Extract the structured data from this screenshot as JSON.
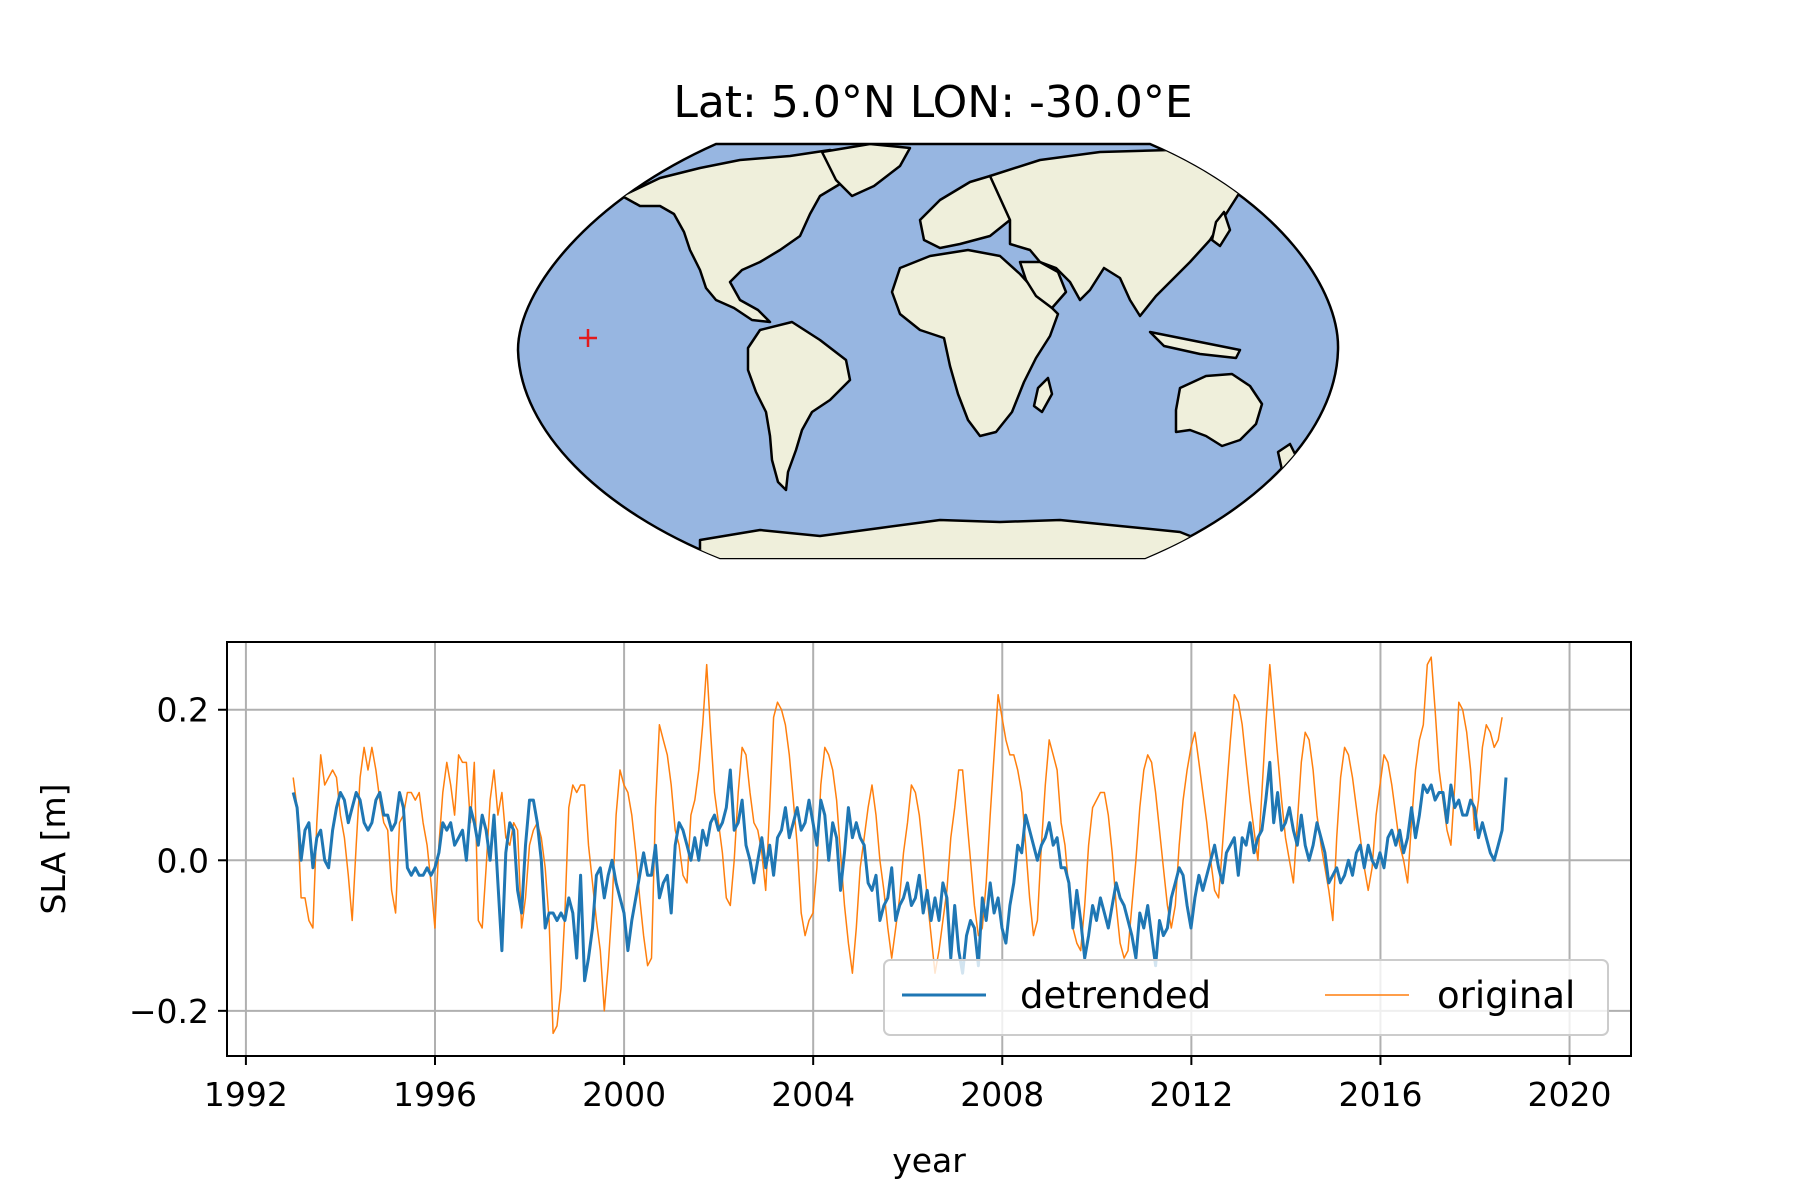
{
  "map": {
    "title": "Lat: 5.0°N LON: -30.0°E",
    "ocean_color": "#97b6e1",
    "land_color": "#efefdb",
    "marker_color": "#e31a1c",
    "marker_symbol": "+"
  },
  "chart_data": {
    "type": "line",
    "xlabel": "year",
    "ylabel": "SLA [m]",
    "xlim": [
      1991.6,
      2021.3
    ],
    "ylim": [
      -0.26,
      0.29
    ],
    "xticks": [
      1992,
      1996,
      2000,
      2004,
      2008,
      2012,
      2016,
      2020
    ],
    "xtick_labels": [
      "1992",
      "1996",
      "2000",
      "2004",
      "2008",
      "2012",
      "2016",
      "2020"
    ],
    "yticks": [
      -0.2,
      0.0,
      0.2
    ],
    "ytick_labels": [
      "−0.2",
      "0.0",
      "0.2"
    ],
    "grid": true,
    "legend_position": "lower-right",
    "x_start": 1993.0,
    "x_step": 0.0833,
    "series": [
      {
        "name": "detrended",
        "color": "#1f77b4",
        "values": [
          0.09,
          0.07,
          0.0,
          0.04,
          0.05,
          -0.01,
          0.03,
          0.04,
          0.0,
          -0.01,
          0.04,
          0.07,
          0.09,
          0.08,
          0.05,
          0.07,
          0.09,
          0.08,
          0.05,
          0.04,
          0.05,
          0.08,
          0.09,
          0.06,
          0.06,
          0.04,
          0.05,
          0.09,
          0.07,
          -0.01,
          -0.02,
          -0.01,
          -0.02,
          -0.02,
          -0.01,
          -0.02,
          -0.01,
          0.01,
          0.05,
          0.04,
          0.05,
          0.02,
          0.03,
          0.04,
          0.0,
          0.07,
          0.05,
          0.02,
          0.06,
          0.04,
          0.0,
          0.06,
          -0.03,
          -0.12,
          0.01,
          0.05,
          0.04,
          -0.04,
          -0.07,
          0.02,
          0.08,
          0.08,
          0.05,
          0.0,
          -0.09,
          -0.07,
          -0.07,
          -0.08,
          -0.07,
          -0.08,
          -0.05,
          -0.07,
          -0.13,
          -0.02,
          -0.16,
          -0.13,
          -0.09,
          -0.02,
          -0.01,
          -0.05,
          -0.02,
          0.0,
          -0.03,
          -0.05,
          -0.07,
          -0.12,
          -0.08,
          -0.05,
          -0.02,
          0.01,
          -0.02,
          -0.02,
          0.02,
          -0.05,
          -0.03,
          -0.02,
          -0.07,
          0.02,
          0.05,
          0.04,
          0.02,
          0.0,
          0.03,
          0.0,
          0.04,
          0.02,
          0.05,
          0.06,
          0.04,
          0.05,
          0.07,
          0.12,
          0.04,
          0.05,
          0.08,
          0.02,
          0.0,
          -0.03,
          0.0,
          0.03,
          -0.01,
          0.02,
          -0.02,
          0.03,
          0.04,
          0.07,
          0.03,
          0.05,
          0.07,
          0.04,
          0.05,
          0.08,
          0.05,
          0.02,
          0.08,
          0.06,
          0.0,
          0.05,
          0.03,
          -0.04,
          0.01,
          0.07,
          0.03,
          0.05,
          0.03,
          0.02,
          -0.03,
          -0.04,
          -0.02,
          -0.08,
          -0.06,
          -0.05,
          -0.01,
          -0.08,
          -0.06,
          -0.05,
          -0.03,
          -0.06,
          -0.05,
          -0.02,
          -0.07,
          -0.04,
          -0.08,
          -0.05,
          -0.08,
          -0.03,
          -0.05,
          -0.13,
          -0.06,
          -0.12,
          -0.15,
          -0.1,
          -0.08,
          -0.09,
          -0.14,
          -0.05,
          -0.08,
          -0.03,
          -0.07,
          -0.05,
          -0.09,
          -0.11,
          -0.06,
          -0.03,
          0.02,
          0.01,
          0.06,
          0.04,
          0.02,
          0.0,
          0.02,
          0.03,
          0.05,
          0.02,
          0.03,
          -0.01,
          -0.01,
          -0.03,
          -0.09,
          -0.04,
          -0.08,
          -0.13,
          -0.1,
          -0.06,
          -0.08,
          -0.05,
          -0.07,
          -0.09,
          -0.06,
          -0.03,
          -0.05,
          -0.06,
          -0.08,
          -0.1,
          -0.13,
          -0.07,
          -0.09,
          -0.06,
          -0.1,
          -0.14,
          -0.08,
          -0.1,
          -0.09,
          -0.05,
          -0.03,
          -0.01,
          -0.02,
          -0.06,
          -0.09,
          -0.05,
          -0.02,
          -0.04,
          -0.02,
          0.0,
          0.02,
          -0.01,
          -0.03,
          0.01,
          0.02,
          0.03,
          -0.02,
          0.03,
          0.02,
          0.05,
          0.01,
          0.03,
          0.04,
          0.08,
          0.13,
          0.05,
          0.09,
          0.04,
          0.05,
          0.07,
          0.04,
          0.02,
          0.06,
          0.02,
          0.0,
          0.02,
          0.05,
          0.03,
          0.01,
          -0.03,
          -0.02,
          -0.01,
          -0.03,
          -0.02,
          0.0,
          -0.02,
          0.01,
          0.02,
          -0.01,
          0.02,
          0.0,
          -0.01,
          0.01,
          -0.01,
          0.03,
          0.04,
          0.02,
          0.04,
          0.01,
          0.03,
          0.07,
          0.03,
          0.06,
          0.1,
          0.09,
          0.1,
          0.08,
          0.09,
          0.09,
          0.05,
          0.1,
          0.07,
          0.08,
          0.06,
          0.06,
          0.08,
          0.07,
          0.03,
          0.05,
          0.03,
          0.01,
          0.0,
          0.02,
          0.04,
          0.11
        ]
      },
      {
        "name": "original",
        "color": "#ff7f0e",
        "values": [
          0.11,
          0.07,
          -0.05,
          -0.05,
          -0.08,
          -0.09,
          0.05,
          0.14,
          0.1,
          0.11,
          0.12,
          0.11,
          0.06,
          0.03,
          -0.02,
          -0.08,
          0.02,
          0.11,
          0.15,
          0.12,
          0.15,
          0.12,
          0.08,
          0.05,
          0.04,
          -0.04,
          -0.07,
          0.05,
          0.06,
          0.09,
          0.09,
          0.08,
          0.09,
          0.05,
          0.02,
          -0.03,
          -0.09,
          0.02,
          0.09,
          0.13,
          0.1,
          0.06,
          0.14,
          0.13,
          0.13,
          0.05,
          0.13,
          -0.08,
          -0.09,
          -0.01,
          0.08,
          0.12,
          0.06,
          0.09,
          0.03,
          0.02,
          0.05,
          0.04,
          -0.09,
          -0.05,
          0.02,
          0.04,
          0.05,
          0.03,
          -0.01,
          -0.08,
          -0.23,
          -0.22,
          -0.17,
          -0.07,
          0.07,
          0.1,
          0.09,
          0.1,
          0.1,
          0.02,
          -0.03,
          -0.08,
          -0.12,
          -0.2,
          -0.14,
          -0.06,
          0.06,
          0.12,
          0.1,
          0.09,
          0.06,
          0.01,
          -0.05,
          -0.1,
          -0.14,
          -0.13,
          0.07,
          0.18,
          0.16,
          0.14,
          0.1,
          0.04,
          0.02,
          -0.02,
          -0.03,
          0.06,
          0.08,
          0.12,
          0.18,
          0.26,
          0.17,
          0.09,
          0.05,
          0.01,
          -0.05,
          -0.06,
          0.0,
          0.09,
          0.15,
          0.14,
          0.09,
          0.05,
          0.04,
          0.01,
          -0.04,
          0.07,
          0.19,
          0.21,
          0.2,
          0.18,
          0.14,
          0.08,
          0.02,
          -0.07,
          -0.1,
          -0.08,
          -0.07,
          -0.01,
          0.1,
          0.15,
          0.14,
          0.12,
          0.08,
          0.01,
          -0.06,
          -0.11,
          -0.15,
          -0.09,
          -0.01,
          0.03,
          0.07,
          0.1,
          0.06,
          0.0,
          -0.04,
          -0.09,
          -0.13,
          -0.09,
          -0.05,
          0.01,
          0.05,
          0.1,
          0.09,
          0.06,
          0.01,
          -0.05,
          -0.1,
          -0.15,
          -0.12,
          -0.08,
          -0.04,
          0.03,
          0.07,
          0.12,
          0.12,
          0.06,
          0.0,
          -0.06,
          -0.1,
          -0.09,
          -0.03,
          0.06,
          0.14,
          0.22,
          0.19,
          0.16,
          0.14,
          0.14,
          0.12,
          0.09,
          0.02,
          -0.05,
          -0.1,
          -0.08,
          0.02,
          0.1,
          0.16,
          0.14,
          0.12,
          0.05,
          0.02,
          -0.04,
          -0.09,
          -0.11,
          -0.12,
          -0.06,
          0.02,
          0.07,
          0.08,
          0.09,
          0.09,
          0.06,
          0.01,
          -0.06,
          -0.11,
          -0.13,
          -0.12,
          -0.06,
          0.0,
          0.07,
          0.12,
          0.14,
          0.13,
          0.09,
          0.04,
          -0.01,
          -0.06,
          -0.09,
          -0.06,
          0.02,
          0.08,
          0.12,
          0.15,
          0.17,
          0.13,
          0.09,
          0.05,
          0.0,
          -0.04,
          -0.05,
          0.02,
          0.09,
          0.16,
          0.22,
          0.21,
          0.18,
          0.13,
          0.08,
          0.04,
          0.0,
          0.09,
          0.18,
          0.26,
          0.2,
          0.14,
          0.08,
          0.03,
          0.0,
          -0.03,
          0.05,
          0.13,
          0.17,
          0.16,
          0.12,
          0.06,
          0.02,
          -0.01,
          -0.04,
          -0.08,
          0.03,
          0.11,
          0.15,
          0.14,
          0.11,
          0.07,
          0.03,
          -0.01,
          -0.04,
          -0.01,
          0.06,
          0.1,
          0.14,
          0.13,
          0.1,
          0.06,
          0.02,
          0.0,
          -0.03,
          0.05,
          0.12,
          0.16,
          0.18,
          0.26,
          0.27,
          0.2,
          0.12,
          0.08,
          0.04,
          0.02,
          0.1,
          0.21,
          0.2,
          0.17,
          0.12,
          0.04,
          0.08,
          0.15,
          0.18,
          0.17,
          0.15,
          0.16,
          0.19
        ]
      }
    ]
  }
}
